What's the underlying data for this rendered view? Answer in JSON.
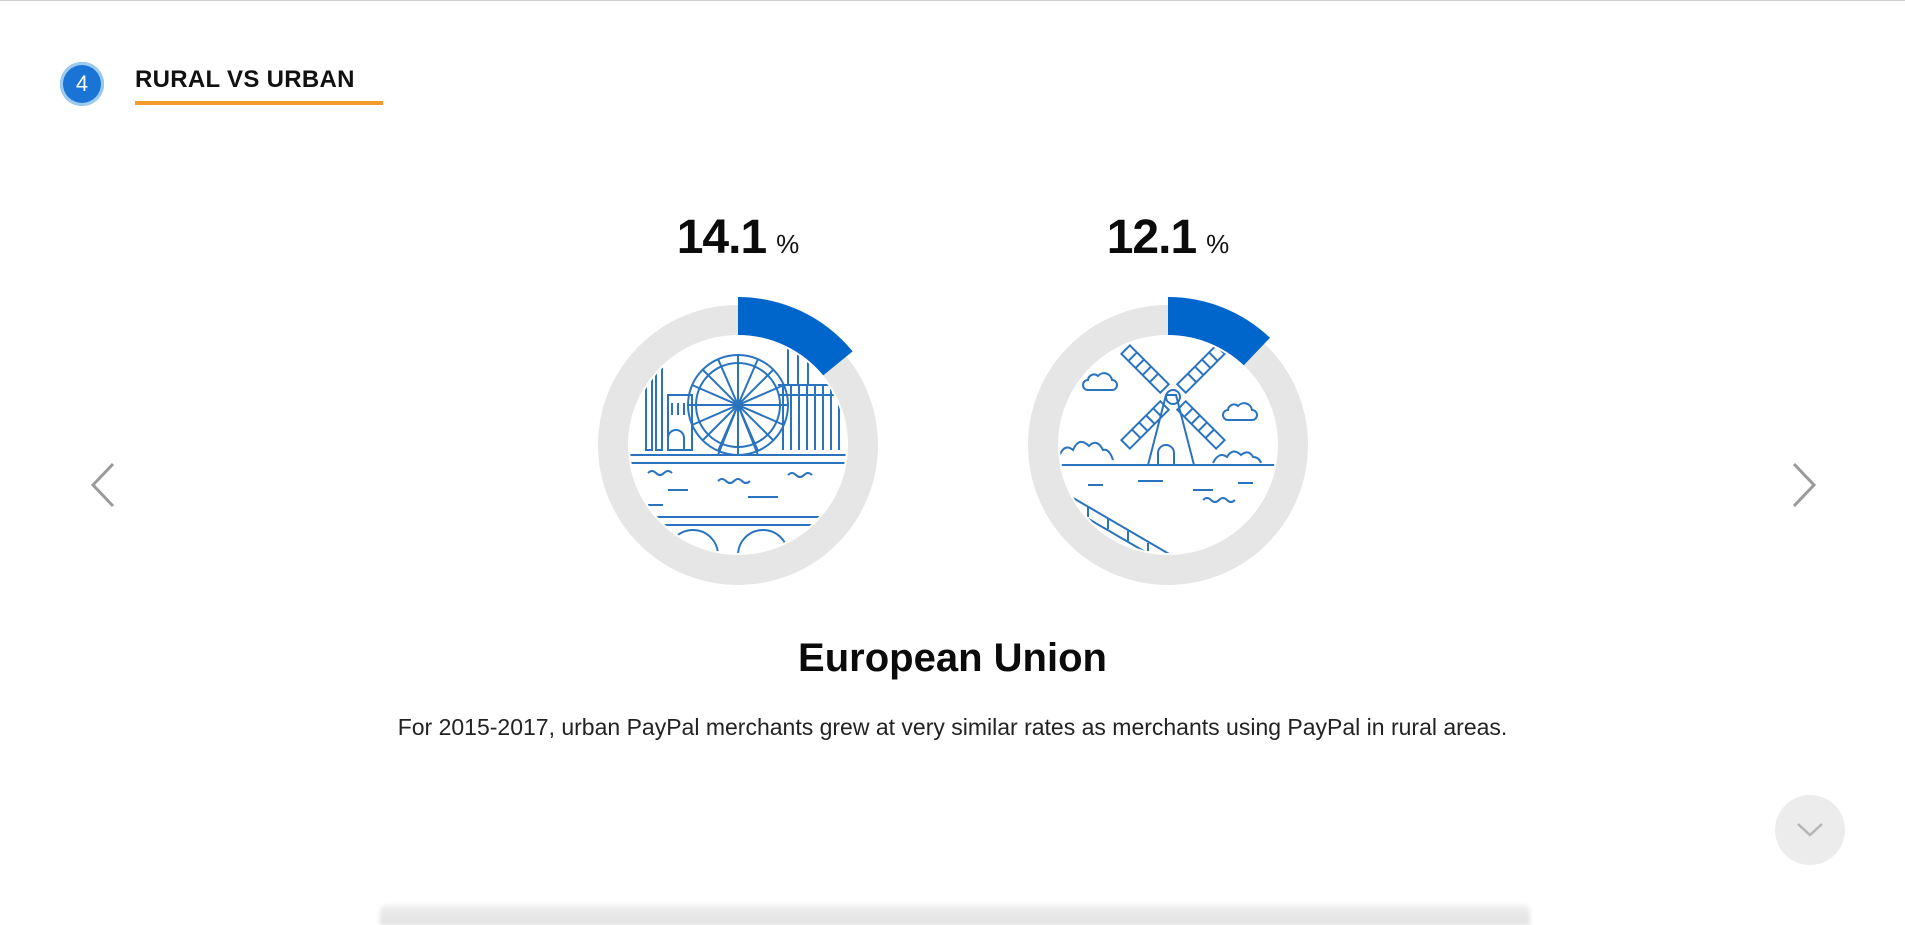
{
  "section": {
    "number": "4",
    "title": "RURAL VS URBAN"
  },
  "stats": [
    {
      "label": "urban",
      "value": "14.1",
      "unit": "%",
      "fraction": 0.141
    },
    {
      "label": "rural",
      "value": "12.1",
      "unit": "%",
      "fraction": 0.121
    }
  ],
  "region": {
    "title": "European Union"
  },
  "description": "For 2015-2017, urban PayPal merchants grew at very similar rates as merchants using PayPal in rural areas.",
  "colors": {
    "accent": "#0066cc",
    "ring": "#e6e6e6",
    "underline": "#f29a2e",
    "illustration": "#2a73bf"
  },
  "icons": {
    "prev": "chevron-left-icon",
    "next": "chevron-right-icon",
    "scroll": "chevron-down-icon"
  }
}
